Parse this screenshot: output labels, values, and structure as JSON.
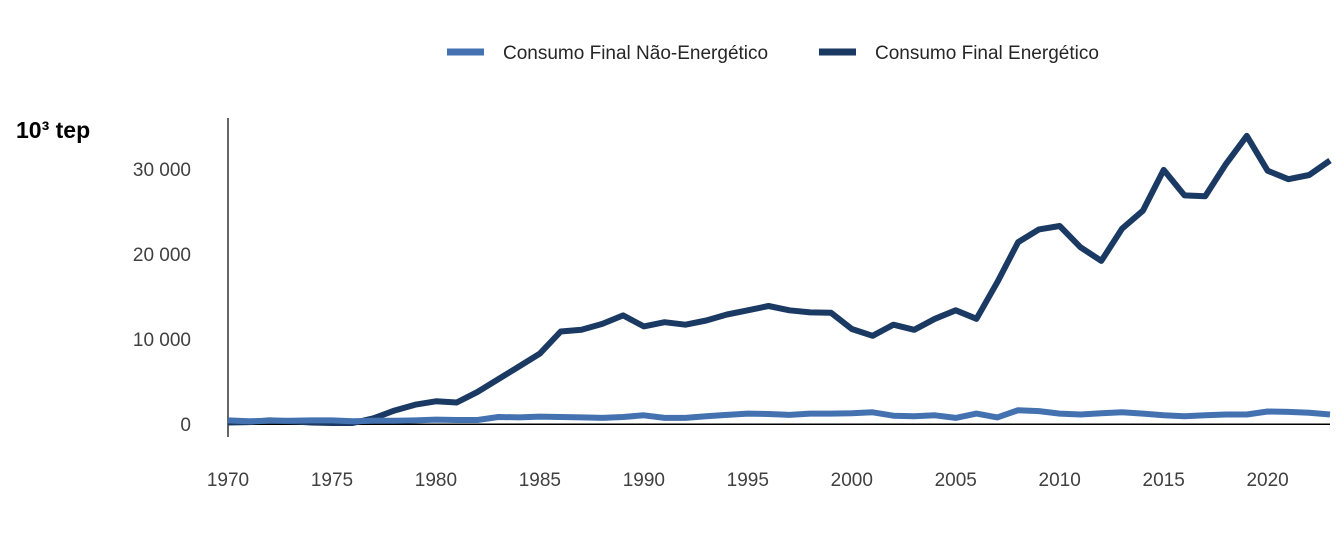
{
  "chart_data": {
    "type": "line",
    "ylabel": "10³ tep",
    "xlabel": "",
    "title": "",
    "xlim": [
      1970,
      2023
    ],
    "ylim": [
      -1500,
      36000
    ],
    "x_ticks": [
      1970,
      1975,
      1980,
      1985,
      1990,
      1995,
      2000,
      2005,
      2010,
      2015,
      2020
    ],
    "x_tick_labels": [
      "1970",
      "1975",
      "1980",
      "1985",
      "1990",
      "1995",
      "2000",
      "2005",
      "2010",
      "2015",
      "2020"
    ],
    "y_ticks": [
      0,
      10000,
      20000,
      30000
    ],
    "y_tick_labels": [
      "0",
      "10 000",
      "20 000",
      "30 000"
    ],
    "grid": false,
    "legend_position": "top",
    "x": [
      1970,
      1971,
      1972,
      1973,
      1974,
      1975,
      1976,
      1977,
      1978,
      1979,
      1980,
      1981,
      1982,
      1983,
      1984,
      1985,
      1986,
      1987,
      1988,
      1989,
      1990,
      1991,
      1992,
      1993,
      1994,
      1995,
      1996,
      1997,
      1998,
      1999,
      2000,
      2001,
      2002,
      2003,
      2004,
      2005,
      2006,
      2007,
      2008,
      2009,
      2010,
      2011,
      2012,
      2013,
      2014,
      2015,
      2016,
      2017,
      2018,
      2019,
      2020,
      2021,
      2022,
      2023
    ],
    "series": [
      {
        "name": "Consumo Final Não-Energético",
        "color": "#4472b0",
        "values": [
          450,
          350,
          400,
          400,
          450,
          450,
          350,
          400,
          400,
          450,
          550,
          500,
          500,
          850,
          800,
          900,
          850,
          800,
          750,
          850,
          1050,
          750,
          750,
          950,
          1100,
          1250,
          1200,
          1100,
          1250,
          1250,
          1300,
          1400,
          1000,
          950,
          1050,
          750,
          1250,
          800,
          1650,
          1550,
          1250,
          1150,
          1300,
          1400,
          1250,
          1050,
          950,
          1050,
          1150,
          1150,
          1500,
          1450,
          1350,
          1150
        ]
      },
      {
        "name": "Consumo Final Energético",
        "color": "#1b3a63",
        "values": [
          200,
          250,
          450,
          350,
          200,
          150,
          150,
          700,
          1600,
          2300,
          2700,
          2550,
          3800,
          5300,
          6800,
          8300,
          10900,
          11100,
          11800,
          12800,
          11500,
          12000,
          11700,
          12200,
          12900,
          13400,
          13900,
          13400,
          13150,
          13100,
          11200,
          10400,
          11700,
          11100,
          12400,
          13400,
          12400,
          16700,
          21400,
          22900,
          23300,
          20800,
          19200,
          23000,
          25100,
          29900,
          26900,
          26800,
          30600,
          33900,
          29800,
          28800,
          29300,
          31000
        ]
      }
    ]
  }
}
